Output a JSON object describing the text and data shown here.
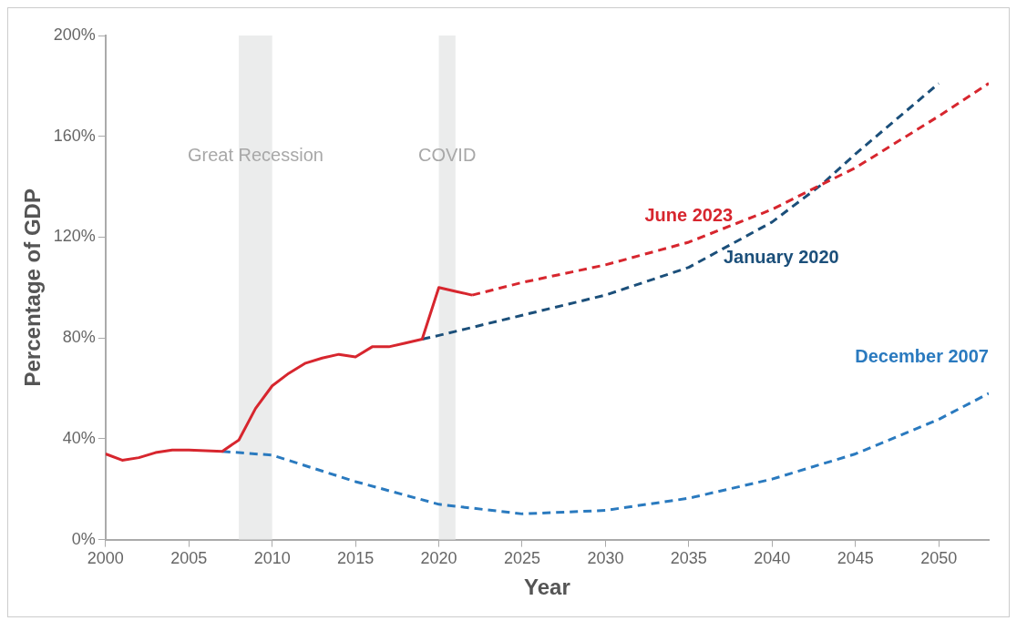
{
  "chart_data": {
    "type": "line",
    "xlabel": "Year",
    "ylabel": "Percentage of GDP",
    "xlim": [
      2000,
      2053
    ],
    "xticks": [
      2000,
      2005,
      2010,
      2015,
      2020,
      2025,
      2030,
      2035,
      2040,
      2045,
      2050
    ],
    "ylim": [
      0,
      200
    ],
    "yticks": [
      {
        "value": 0,
        "label": "0%"
      },
      {
        "value": 40,
        "label": "40%"
      },
      {
        "value": 80,
        "label": "80%"
      },
      {
        "value": 120,
        "label": "120%"
      },
      {
        "value": 160,
        "label": "160%"
      },
      {
        "value": 200,
        "label": "200%"
      }
    ],
    "grid": false,
    "legend": false,
    "marker": "none",
    "bands": [
      {
        "axis": "x",
        "from": 2008,
        "to": 2010,
        "label": "Great Recession",
        "color": "#ebecec"
      },
      {
        "axis": "x",
        "from": 2020,
        "to": 2021,
        "label": "COVID",
        "color": "#ebecec"
      }
    ],
    "series": [
      {
        "color": "#d7262e",
        "line_style": "solid",
        "x": [
          2000,
          2001,
          2002,
          2003,
          2004,
          2005,
          2006,
          2007,
          2008,
          2009,
          2010,
          2011,
          2012,
          2013,
          2014,
          2015,
          2016,
          2017,
          2018,
          2019,
          2020,
          2021,
          2022
        ],
        "values": [
          34,
          31.5,
          32.5,
          34.5,
          35.5,
          35.5,
          35.3,
          35,
          39.5,
          52,
          61,
          66,
          70,
          72,
          73.5,
          72.5,
          76.5,
          76.5,
          78,
          79.5,
          100,
          98.5,
          97
        ]
      },
      {
        "name": "June 2023",
        "color": "#d7262e",
        "line_style": "dashed",
        "x": [
          2022,
          2025,
          2030,
          2035,
          2040,
          2043,
          2045,
          2050,
          2053
        ],
        "values": [
          97,
          102,
          109,
          118,
          131,
          141,
          147.5,
          168,
          181
        ]
      },
      {
        "name": "January 2020",
        "color": "#1b4f7a",
        "line_style": "dashed",
        "x": [
          2019,
          2020,
          2025,
          2030,
          2035,
          2040,
          2043,
          2045,
          2050
        ],
        "values": [
          79.5,
          81,
          89,
          97,
          108,
          126,
          141,
          153,
          181
        ]
      },
      {
        "name": "December 2007",
        "color": "#2a7abf",
        "line_style": "dashed",
        "x": [
          2007,
          2010,
          2015,
          2020,
          2025,
          2030,
          2035,
          2040,
          2045,
          2050,
          2053
        ],
        "values": [
          35,
          33.5,
          23,
          14,
          10.2,
          11.6,
          16.4,
          24,
          34,
          47.7,
          58
        ]
      }
    ]
  }
}
